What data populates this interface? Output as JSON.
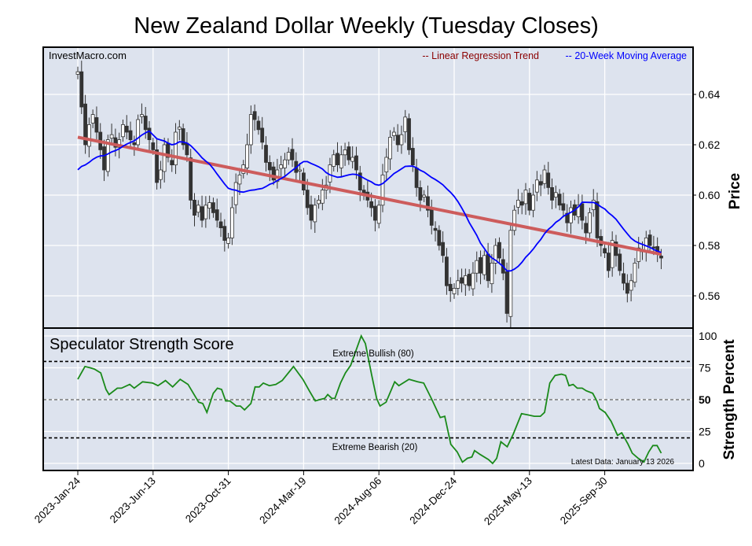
{
  "chart_data": [
    {
      "type": "candlestick",
      "title": "New Zealand Dollar Weekly (Tuesday Closes)",
      "watermark": "InvestMacro.com",
      "ylabel": "Price",
      "ylim": [
        0.548,
        0.655
      ],
      "yticks": [
        0.56,
        0.58,
        0.6,
        0.62,
        0.64
      ],
      "ytick_labels": [
        "0.56",
        "0.58",
        "0.60",
        "0.62",
        "0.64"
      ],
      "legend": {
        "placement": "top-right",
        "entries": [
          {
            "label": "-- Linear Regression Trend",
            "color": "#8b0000"
          },
          {
            "label": "-- 20-Week Moving Average",
            "color": "#0000ff"
          }
        ]
      },
      "x_unit": "weeks since 2023-01-24",
      "closes": [
        0.649,
        0.635,
        0.62,
        0.628,
        0.632,
        0.625,
        0.618,
        0.61,
        0.622,
        0.624,
        0.619,
        0.622,
        0.628,
        0.625,
        0.622,
        0.62,
        0.63,
        0.632,
        0.626,
        0.622,
        0.618,
        0.605,
        0.61,
        0.62,
        0.615,
        0.612,
        0.625,
        0.627,
        0.62,
        0.616,
        0.598,
        0.592,
        0.596,
        0.59,
        0.596,
        0.597,
        0.593,
        0.59,
        0.587,
        0.582,
        0.583,
        0.595,
        0.605,
        0.608,
        0.612,
        0.62,
        0.632,
        0.63,
        0.626,
        0.621,
        0.613,
        0.61,
        0.606,
        0.61,
        0.612,
        0.614,
        0.617,
        0.614,
        0.609,
        0.61,
        0.602,
        0.595,
        0.59,
        0.596,
        0.598,
        0.602,
        0.604,
        0.612,
        0.616,
        0.612,
        0.616,
        0.618,
        0.614,
        0.615,
        0.61,
        0.602,
        0.6,
        0.598,
        0.595,
        0.59,
        0.596,
        0.608,
        0.615,
        0.623,
        0.625,
        0.62,
        0.624,
        0.631,
        0.618,
        0.612,
        0.603,
        0.598,
        0.6,
        0.594,
        0.588,
        0.586,
        0.58,
        0.576,
        0.564,
        0.562,
        0.563,
        0.566,
        0.565,
        0.568,
        0.564,
        0.569,
        0.574,
        0.569,
        0.576,
        0.566,
        0.573,
        0.58,
        0.575,
        0.569,
        0.553,
        0.586,
        0.594,
        0.598,
        0.596,
        0.602,
        0.594,
        0.6,
        0.606,
        0.604,
        0.61,
        0.603,
        0.598,
        0.601,
        0.596,
        0.594,
        0.589,
        0.595,
        0.592,
        0.596,
        0.59,
        0.585,
        0.593,
        0.598,
        0.583,
        0.58,
        0.577,
        0.57,
        0.582,
        0.576,
        0.57,
        0.565,
        0.561,
        0.566,
        0.573,
        0.579,
        0.578,
        0.583,
        0.58,
        0.579,
        0.577,
        0.575
      ],
      "regression": {
        "start": 0.623,
        "end": 0.5765
      },
      "moving_average_window": 20,
      "moving_average_start": 0.608
    },
    {
      "type": "line",
      "title": "Speculator Strength Score",
      "ylabel": "Strength Percent",
      "ylim": [
        0,
        100
      ],
      "yticks": [
        0,
        25,
        50,
        75,
        100
      ],
      "ytick_labels": [
        "0",
        "25",
        "50",
        "75",
        "100"
      ],
      "reference_lines": [
        {
          "value": 80,
          "label": "Extreme Bullish (80)"
        },
        {
          "value": 50,
          "label": ""
        },
        {
          "value": 20,
          "label": "Extreme Bearish (20)"
        }
      ],
      "note": "Latest Data: January 13 2026",
      "points": [
        [
          0,
          66
        ],
        [
          1.9,
          76
        ],
        [
          3.3,
          75
        ],
        [
          4.4,
          74
        ],
        [
          6.1,
          71
        ],
        [
          7.5,
          58
        ],
        [
          8.3,
          54
        ],
        [
          10.5,
          59
        ],
        [
          11.6,
          59
        ],
        [
          13.8,
          62
        ],
        [
          15,
          59
        ],
        [
          17.2,
          64
        ],
        [
          19.9,
          63
        ],
        [
          21.3,
          61
        ],
        [
          23.3,
          65
        ],
        [
          25.2,
          60
        ],
        [
          27.2,
          66
        ],
        [
          29.3,
          62
        ],
        [
          32.1,
          48
        ],
        [
          33.2,
          47
        ],
        [
          34.3,
          40
        ],
        [
          36,
          55
        ],
        [
          37.1,
          59
        ],
        [
          38.2,
          58
        ],
        [
          39.3,
          49
        ],
        [
          40.4,
          49
        ],
        [
          42.1,
          45
        ],
        [
          43.2,
          45
        ],
        [
          44.3,
          42
        ],
        [
          46,
          47
        ],
        [
          47.1,
          60
        ],
        [
          48.2,
          60
        ],
        [
          49.3,
          63
        ],
        [
          50.9,
          61
        ],
        [
          52.6,
          62
        ],
        [
          54.3,
          65
        ],
        [
          57.3,
          76
        ],
        [
          59.8,
          66
        ],
        [
          61.5,
          57
        ],
        [
          63.1,
          49
        ],
        [
          64.2,
          50
        ],
        [
          65.6,
          51
        ],
        [
          66.4,
          54
        ],
        [
          67.5,
          51
        ],
        [
          68.3,
          51
        ],
        [
          69.8,
          63
        ],
        [
          71.1,
          71
        ],
        [
          72.5,
          77
        ],
        [
          75.3,
          100
        ],
        [
          76.4,
          94
        ],
        [
          78.1,
          69
        ],
        [
          79.4,
          51
        ],
        [
          80.3,
          45
        ],
        [
          81.9,
          48
        ],
        [
          84.2,
          64
        ],
        [
          85.3,
          61
        ],
        [
          88,
          66
        ],
        [
          90.3,
          64
        ],
        [
          91.9,
          63
        ],
        [
          94.1,
          50
        ],
        [
          96.3,
          36
        ],
        [
          97.5,
          37
        ],
        [
          99.1,
          15
        ],
        [
          100.8,
          9
        ],
        [
          102.2,
          1
        ],
        [
          103.5,
          4
        ],
        [
          104.7,
          5
        ],
        [
          105.4,
          10
        ],
        [
          106.9,
          7
        ],
        [
          109.1,
          3
        ],
        [
          110.2,
          0
        ],
        [
          111.3,
          4
        ],
        [
          112.4,
          17
        ],
        [
          114.1,
          13
        ],
        [
          115.7,
          23
        ],
        [
          117.9,
          39
        ],
        [
          119.6,
          38
        ],
        [
          121.3,
          37
        ],
        [
          122.9,
          37
        ],
        [
          124,
          40
        ],
        [
          125.4,
          63
        ],
        [
          126.8,
          69
        ],
        [
          128.5,
          70
        ],
        [
          129.6,
          69
        ],
        [
          130.5,
          61
        ],
        [
          131.6,
          62
        ],
        [
          132.7,
          59
        ],
        [
          134,
          59
        ],
        [
          135.1,
          57
        ],
        [
          136.8,
          55
        ],
        [
          137.9,
          49
        ],
        [
          138.6,
          43
        ],
        [
          140.1,
          40
        ],
        [
          141.7,
          33
        ],
        [
          143.4,
          22
        ],
        [
          144.5,
          24
        ],
        [
          146.2,
          15
        ],
        [
          147.3,
          8
        ],
        [
          148.9,
          4
        ],
        [
          150.4,
          1
        ],
        [
          151.7,
          9
        ],
        [
          152.8,
          14
        ],
        [
          153.9,
          14
        ],
        [
          155,
          8
        ]
      ]
    }
  ],
  "x_axis": {
    "ticks": [
      0,
      20,
      40,
      60,
      80,
      100,
      120,
      140
    ],
    "tick_labels": [
      "2023-Jan-24",
      "2023-Jun-13",
      "2023-Oct-31",
      "2024-Mar-19",
      "2024-Aug-06",
      "2024-Dec-24",
      "2025-May-13",
      "2025-Sep-30"
    ]
  },
  "colors": {
    "panel_bg": "#dde3ee",
    "up": "#ffffff",
    "down": "#333333",
    "regression": "#cd5c5c",
    "ma": "#0000ff",
    "strength": "#1a8a1a"
  }
}
